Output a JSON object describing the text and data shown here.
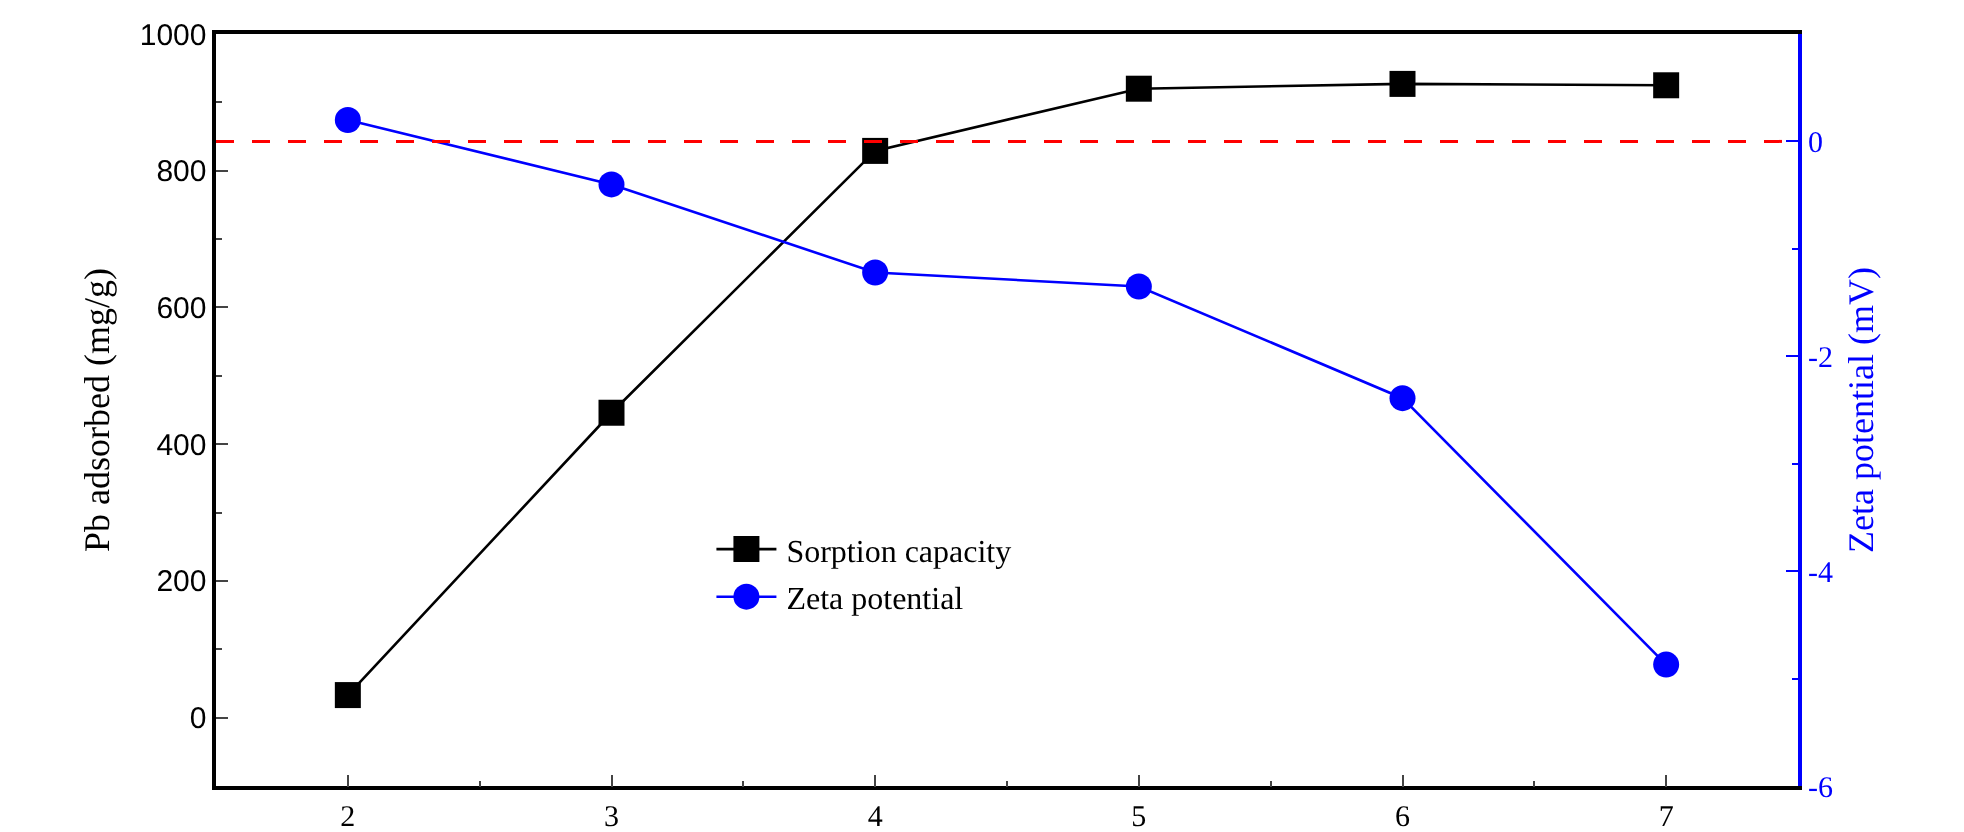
{
  "chart_data": {
    "type": "line",
    "ylabel": "Pb adsorbed (mg/g)",
    "y2label": "Zeta potential (mV)",
    "x": [
      2,
      3,
      4,
      5,
      6,
      7
    ],
    "series": [
      {
        "name": "Sorption capacity",
        "color": "#000000",
        "marker": "square",
        "values": [
          33,
          446,
          829,
          920,
          927,
          925
        ]
      },
      {
        "name": "Zeta potential",
        "color": "#0000ff",
        "marker": "circle",
        "axis": "y2",
        "values": [
          0.2,
          -0.4,
          -1.22,
          -1.35,
          -2.39,
          -4.87
        ]
      }
    ],
    "xlim": [
      1.5,
      7.5
    ],
    "xticks": [
      2,
      3,
      4,
      5,
      6,
      7
    ],
    "ylim": [
      -100,
      1000
    ],
    "yticks": [
      0,
      200,
      400,
      600,
      800,
      1000
    ],
    "y2lim": [
      -6,
      1
    ],
    "y2ticks": [
      -6,
      -4,
      -2,
      0
    ],
    "ref_lines": [
      {
        "axis": "y2",
        "value": 0,
        "color": "#ff0000",
        "line_style": "dashed"
      }
    ],
    "grid": false,
    "legend": "bottom",
    "line_style": "solid"
  }
}
